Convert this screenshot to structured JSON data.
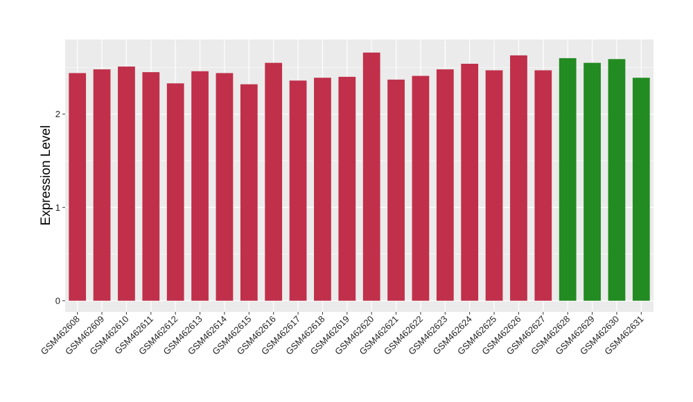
{
  "chart_data": {
    "type": "bar",
    "title": "",
    "xlabel": "",
    "ylabel": "Expression Level",
    "ylim": [
      -0.12,
      2.8
    ],
    "yticks": [
      0,
      1,
      2
    ],
    "grid": true,
    "categories": [
      "GSM462608",
      "GSM462609",
      "GSM462610",
      "GSM462611",
      "GSM462612",
      "GSM462613",
      "GSM462614",
      "GSM462615",
      "GSM462616",
      "GSM462617",
      "GSM462618",
      "GSM462619",
      "GSM462620",
      "GSM462621",
      "GSM462622",
      "GSM462623",
      "GSM462624",
      "GSM462625",
      "GSM462626",
      "GSM462627",
      "GSM462628",
      "GSM462629",
      "GSM462630",
      "GSM462631"
    ],
    "values": [
      2.44,
      2.48,
      2.51,
      2.45,
      2.33,
      2.46,
      2.44,
      2.32,
      2.55,
      2.36,
      2.39,
      2.4,
      2.66,
      2.37,
      2.41,
      2.48,
      2.54,
      2.47,
      2.63,
      2.47,
      2.6,
      2.55,
      2.59,
      2.39
    ],
    "bar_colors": [
      "#c0304a",
      "#c0304a",
      "#c0304a",
      "#c0304a",
      "#c0304a",
      "#c0304a",
      "#c0304a",
      "#c0304a",
      "#c0304a",
      "#c0304a",
      "#c0304a",
      "#c0304a",
      "#c0304a",
      "#c0304a",
      "#c0304a",
      "#c0304a",
      "#c0304a",
      "#c0304a",
      "#c0304a",
      "#c0304a",
      "#228b22",
      "#228b22",
      "#228b22",
      "#228b22"
    ],
    "panel_background": "#ebebeb",
    "grid_color": "#ffffff"
  }
}
